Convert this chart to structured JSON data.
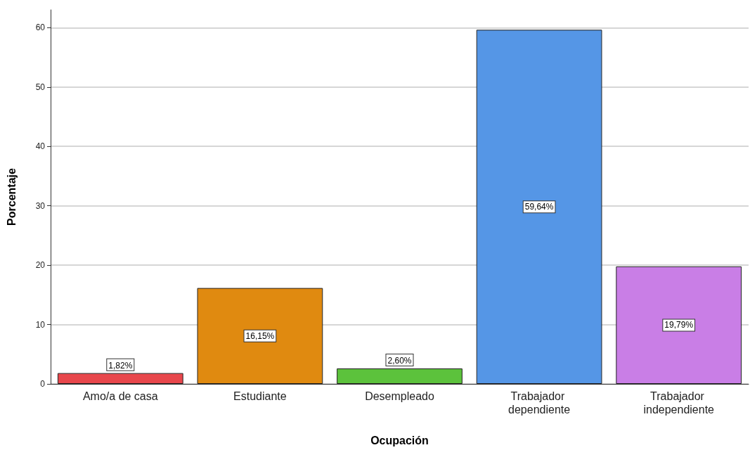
{
  "chart_data": {
    "type": "bar",
    "xlabel": "Ocupación",
    "ylabel": "Porcentaje",
    "categories": [
      "Amo/a de casa",
      "Estudiante",
      "Desempleado",
      "Trabajador dependiente",
      "Trabajador independiente"
    ],
    "values": [
      1.82,
      16.15,
      2.6,
      59.64,
      19.79
    ],
    "value_labels": [
      "1,82%",
      "16,15%",
      "2,60%",
      "59,64%",
      "19,79%"
    ],
    "colors": [
      "#e8474c",
      "#e08a10",
      "#5cc23c",
      "#5596e6",
      "#c97ee6"
    ],
    "ylim": [
      0,
      63
    ],
    "yticks": [
      0,
      10,
      20,
      30,
      40,
      50,
      60
    ],
    "grid": "y"
  }
}
